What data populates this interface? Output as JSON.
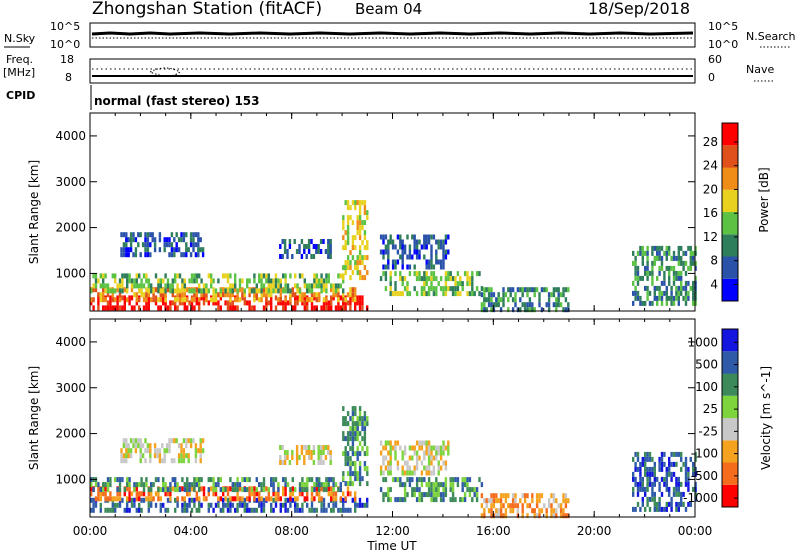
{
  "header": {
    "station": "Zhongshan Station (fitACF)",
    "beam": "Beam 04",
    "date": "18/Sep/2018",
    "nsky_label": "N.Sky",
    "nsearch_label": "N.Search",
    "freq_label_1": "Freq.",
    "freq_label_2": "[MHz]",
    "nave_label": "Nave",
    "cpid_label": "CPID",
    "cpid_value": "normal (fast stereo) 153",
    "nsky_ticks": [
      "10^5",
      "10^0"
    ],
    "nsearch_ticks": [
      "10^5",
      "10^0"
    ],
    "freq_ticks": [
      "18",
      "8"
    ],
    "nave_ticks": [
      "60",
      "0"
    ]
  },
  "colors": {
    "power": [
      "#0000ff",
      "#2a52a8",
      "#2e7d5b",
      "#5bc244",
      "#e8d21f",
      "#f08c18",
      "#e0501a",
      "#ff0000"
    ],
    "velocity": [
      "#ff0000",
      "#f56d1c",
      "#f5a21f",
      "#c8c8c8",
      "#7dd43d",
      "#3c8a5a",
      "#2f5aa8",
      "#1515e0"
    ]
  },
  "chart_data": [
    {
      "type": "heatmap",
      "xlabel": "",
      "ylabel": "Slant Range [km]",
      "x_ticks": [
        "00:00",
        "04:00",
        "08:00",
        "12:00",
        "16:00",
        "20:00",
        "00:00"
      ],
      "y_ticks": [
        "1000",
        "2000",
        "3000",
        "4000"
      ],
      "xlim_hours": [
        0,
        24
      ],
      "ylim_km": [
        180,
        4500
      ],
      "colorbar": {
        "label": "Power [dB]",
        "ticks": [
          "28",
          "24",
          "20",
          "16",
          "12",
          "8",
          "4"
        ],
        "range": [
          0,
          30
        ]
      },
      "regions": [
        {
          "x0": 0.0,
          "x1": 11.0,
          "y0": 300,
          "y1": 520,
          "level": 7
        },
        {
          "x0": 0.0,
          "x1": 10.5,
          "y0": 450,
          "y1": 700,
          "level": 5
        },
        {
          "x0": 0.0,
          "x1": 10.0,
          "y0": 650,
          "y1": 1000,
          "level": 3
        },
        {
          "x0": 10.0,
          "x1": 11.0,
          "y0": 900,
          "y1": 2600,
          "level": 4
        },
        {
          "x0": 1.2,
          "x1": 4.5,
          "y0": 1450,
          "y1": 1900,
          "level": 1
        },
        {
          "x0": 7.5,
          "x1": 9.5,
          "y0": 1400,
          "y1": 1750,
          "level": 1
        },
        {
          "x0": 11.5,
          "x1": 14.2,
          "y0": 1150,
          "y1": 1850,
          "level": 1
        },
        {
          "x0": 11.5,
          "x1": 15.5,
          "y0": 550,
          "y1": 1050,
          "level": 3
        },
        {
          "x0": 15.5,
          "x1": 19.0,
          "y0": 250,
          "y1": 700,
          "level": 2
        },
        {
          "x0": 21.5,
          "x1": 24.0,
          "y0": 300,
          "y1": 1600,
          "level": 2
        }
      ]
    },
    {
      "type": "heatmap",
      "xlabel": "Time UT",
      "ylabel": "Slant Range [km]",
      "x_ticks": [
        "00:00",
        "04:00",
        "08:00",
        "12:00",
        "16:00",
        "20:00",
        "00:00"
      ],
      "y_ticks": [
        "1000",
        "2000",
        "3000",
        "4000"
      ],
      "xlim_hours": [
        0,
        24
      ],
      "ylim_km": [
        180,
        4500
      ],
      "colorbar": {
        "label": "Velocity [m s^-1]",
        "ticks": [
          "1000",
          "500",
          "100",
          "25",
          "-25",
          "-100",
          "-500",
          "-1000"
        ],
        "range": [
          -1000,
          1000
        ]
      },
      "regions": [
        {
          "x0": 0.0,
          "x1": 11.0,
          "y0": 300,
          "y1": 600,
          "level": 6
        },
        {
          "x0": 0.0,
          "x1": 10.5,
          "y0": 550,
          "y1": 850,
          "level": 1
        },
        {
          "x0": 0.0,
          "x1": 10.0,
          "y0": 800,
          "y1": 1050,
          "level": 5
        },
        {
          "x0": 10.0,
          "x1": 11.0,
          "y0": 900,
          "y1": 2600,
          "level": 5
        },
        {
          "x0": 1.2,
          "x1": 4.5,
          "y0": 1450,
          "y1": 1900,
          "level": 3
        },
        {
          "x0": 7.5,
          "x1": 9.5,
          "y0": 1400,
          "y1": 1750,
          "level": 3
        },
        {
          "x0": 11.5,
          "x1": 14.2,
          "y0": 1150,
          "y1": 1850,
          "level": 3
        },
        {
          "x0": 11.5,
          "x1": 15.5,
          "y0": 550,
          "y1": 1050,
          "level": 5
        },
        {
          "x0": 15.5,
          "x1": 19.0,
          "y0": 250,
          "y1": 700,
          "level": 2
        },
        {
          "x0": 21.5,
          "x1": 24.0,
          "y0": 300,
          "y1": 1600,
          "level": 6
        }
      ]
    }
  ]
}
